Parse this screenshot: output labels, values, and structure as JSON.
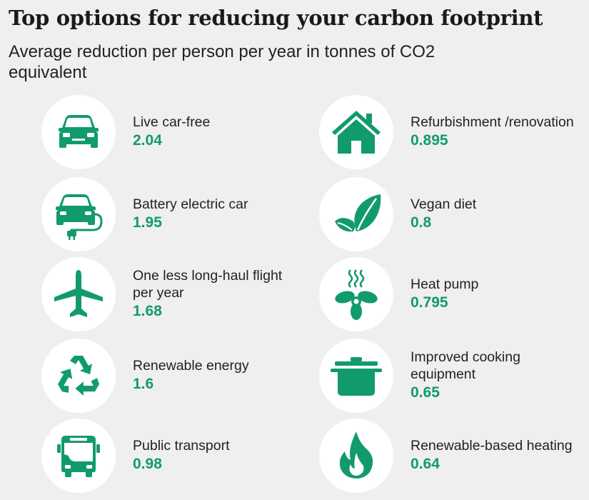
{
  "header": {
    "title": "Top options for reducing your carbon footprint",
    "subtitle": "Average reduction per person per year in tonnes of CO2 equivalent"
  },
  "colors": {
    "accent": "#129a6f",
    "circle": "#ffffff",
    "background": "#efefef"
  },
  "chart_data": {
    "type": "table",
    "title": "Top options for reducing your carbon footprint",
    "subtitle": "Average reduction per person per year in tonnes of CO2 equivalent",
    "unit": "tonnes of CO2 equivalent",
    "items": [
      {
        "label": "Live car-free",
        "value": "2.04",
        "icon": "car-icon"
      },
      {
        "label": "Battery electric car",
        "value": "1.95",
        "icon": "electric-car-icon"
      },
      {
        "label": "One less long-haul flight per year",
        "value": "1.68",
        "icon": "airplane-icon"
      },
      {
        "label": "Renewable energy",
        "value": "1.6",
        "icon": "recycle-icon"
      },
      {
        "label": "Public transport",
        "value": "0.98",
        "icon": "bus-icon"
      },
      {
        "label": "Refurbishment /renovation",
        "value": "0.895",
        "icon": "house-icon"
      },
      {
        "label": "Vegan diet",
        "value": "0.8",
        "icon": "leaves-icon"
      },
      {
        "label": "Heat pump",
        "value": "0.795",
        "icon": "heat-pump-icon"
      },
      {
        "label": "Improved cooking equipment",
        "value": "0.65",
        "icon": "cooking-pot-icon"
      },
      {
        "label": "Renewable-based heating",
        "value": "0.64",
        "icon": "flame-icon"
      }
    ]
  }
}
